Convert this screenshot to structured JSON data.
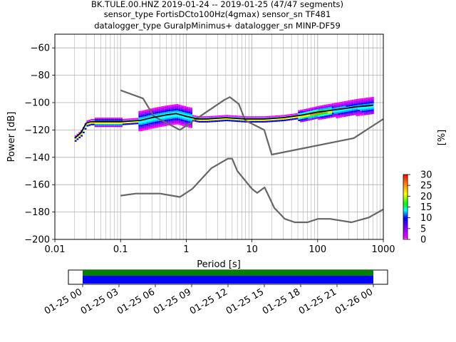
{
  "title": {
    "line1": "BK.TULE.00.HNZ   2019-01-24 -- 2019-01-25  (47/47 segments)",
    "line2": "sensor_type FortisDCto100Hz(4gmax) sensor_sn TF481",
    "line3": "datalogger_type GuralpMinimus+ datalogger_sn MINP-DF59"
  },
  "chart_data": {
    "type": "line",
    "xlabel": "Period [s]",
    "ylabel": "Power [dB]",
    "xscale": "log",
    "xlim": [
      0.01,
      1000
    ],
    "ylim": [
      -200,
      -50
    ],
    "grid": true,
    "xticks": [
      {
        "value": 0.01,
        "label": "0.01"
      },
      {
        "value": 0.1,
        "label": "0.1"
      },
      {
        "value": 1,
        "label": "1"
      },
      {
        "value": 10,
        "label": "10"
      },
      {
        "value": 100,
        "label": "100"
      },
      {
        "value": 1000,
        "label": "1000"
      }
    ],
    "yticks": [
      {
        "value": -60,
        "label": "−60"
      },
      {
        "value": -80,
        "label": "−80"
      },
      {
        "value": -100,
        "label": "−100"
      },
      {
        "value": -120,
        "label": "−120"
      },
      {
        "value": -140,
        "label": "−140"
      },
      {
        "value": -160,
        "label": "−160"
      },
      {
        "value": -180,
        "label": "−180"
      },
      {
        "value": -200,
        "label": "−200"
      }
    ],
    "series": [
      {
        "role": "high-noise-model",
        "color": "#666666",
        "x": [
          0.1,
          0.22,
          0.32,
          0.8,
          3.8,
          4.6,
          6.3,
          7.9,
          15.4,
          20,
          354.8,
          1000
        ],
        "y": [
          -91,
          -97,
          -110,
          -120,
          -98,
          -96,
          -101,
          -113,
          -120,
          -138,
          -126,
          -112
        ]
      },
      {
        "role": "low-noise-model",
        "color": "#666666",
        "x": [
          0.1,
          0.17,
          0.4,
          0.8,
          1.24,
          2.4,
          4.3,
          5.0,
          6.0,
          10.0,
          12.0,
          15.6,
          21.9,
          31.6,
          45.0,
          70.0,
          101.0,
          154.0,
          328.0,
          600.0,
          1000.0
        ],
        "y": [
          -168,
          -166.5,
          -166.5,
          -169,
          -163,
          -148,
          -141,
          -141,
          -150,
          -163,
          -166,
          -162,
          -177,
          -185,
          -187.5,
          -187.5,
          -185,
          -185,
          -187.5,
          -184,
          -178
        ]
      },
      {
        "role": "mode",
        "color": "#000000",
        "x": [
          0.02,
          0.025,
          0.03,
          0.035,
          0.05,
          0.1,
          0.2,
          0.3,
          0.5,
          0.7,
          1.0,
          1.5,
          2.0,
          4.0,
          8.0,
          15.0,
          30.0,
          60.0,
          100.0,
          200.0,
          400.0,
          700.0
        ],
        "y": [
          -126,
          -122,
          -115,
          -114,
          -114,
          -114,
          -113,
          -111,
          -109,
          -108,
          -110,
          -112,
          -112,
          -111,
          -112,
          -112,
          -111,
          -109,
          -107,
          -105,
          -103,
          -102
        ]
      }
    ],
    "colorbar": {
      "label": "[%]",
      "range": [
        0,
        30
      ],
      "ticks": [
        "0",
        "5",
        "10",
        "15",
        "20",
        "25",
        "30"
      ]
    },
    "timeline": {
      "ticks": [
        "01-25 00",
        "01-25 03",
        "01-25 06",
        "01-25 09",
        "01-25 12",
        "01-25 15",
        "01-25 18",
        "01-25 21",
        "01-26 00"
      ],
      "coverage_colors": {
        "data": "#0000ff",
        "gap_free": "#008000"
      }
    }
  }
}
